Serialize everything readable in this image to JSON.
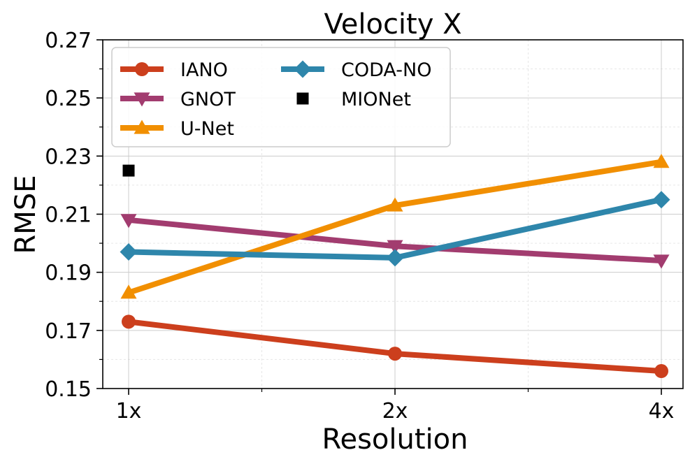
{
  "chart_data": {
    "type": "line",
    "title": "Velocity X",
    "xlabel": "Resolution",
    "ylabel": "RMSE",
    "categories": [
      "1x",
      "2x",
      "4x"
    ],
    "ylim": [
      0.15,
      0.27
    ],
    "yticks": [
      "0.15",
      "0.17",
      "0.19",
      "0.21",
      "0.23",
      "0.25",
      "0.27"
    ],
    "grid": true,
    "legend_position": "top-left",
    "series": [
      {
        "name": "IANO",
        "color": "#cc3f1d",
        "marker": "circle",
        "values": [
          0.173,
          0.162,
          0.156
        ]
      },
      {
        "name": "GNOT",
        "color": "#a23c6f",
        "marker": "triangle-down",
        "values": [
          0.208,
          0.199,
          0.194
        ]
      },
      {
        "name": "U-Net",
        "color": "#f18f01",
        "marker": "triangle-up",
        "values": [
          0.183,
          0.213,
          0.228
        ]
      },
      {
        "name": "CODA-NO",
        "color": "#2e86ab",
        "marker": "diamond",
        "values": [
          0.197,
          0.195,
          0.215
        ]
      },
      {
        "name": "MIONet",
        "color": "#000000",
        "marker": "square",
        "values": [
          0.225,
          null,
          null
        ]
      }
    ]
  }
}
